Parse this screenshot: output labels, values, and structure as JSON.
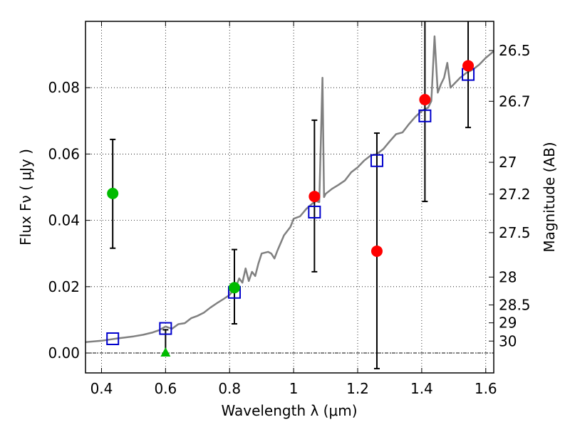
{
  "chart_data": {
    "type": "scatter",
    "xlabel": "Wavelength  λ (μm)",
    "ylabel": "Flux  Fν  ( μJy )",
    "y2label": "Magnitude (AB)",
    "xlim": [
      0.35,
      1.625
    ],
    "ylim": [
      -0.006,
      0.1
    ],
    "grid": true,
    "x_ticks": [
      0.4,
      0.6,
      0.8,
      1.0,
      1.2,
      1.4,
      1.6
    ],
    "x_tick_labels": [
      "0.4",
      "0.6",
      "0.8",
      "1",
      "1.2",
      "1.4",
      "1.6"
    ],
    "y_ticks": [
      0.0,
      0.02,
      0.04,
      0.06,
      0.08
    ],
    "y_tick_labels": [
      "0.00",
      "0.02",
      "0.04",
      "0.06",
      "0.08"
    ],
    "mag_ticks": [
      {
        "label": "26.5",
        "flux": 0.0912
      },
      {
        "label": "26.7",
        "flux": 0.0759
      },
      {
        "label": "27",
        "flux": 0.0575
      },
      {
        "label": "27.2",
        "flux": 0.0479
      },
      {
        "label": "27.5",
        "flux": 0.0363
      },
      {
        "label": "28",
        "flux": 0.0229
      },
      {
        "label": "28.5",
        "flux": 0.0145
      },
      {
        "label": "29",
        "flux": 0.0091
      },
      {
        "label": "30",
        "flux": 0.0036
      }
    ],
    "series": [
      {
        "type": "line",
        "color": "#808080",
        "points": [
          [
            0.35,
            0.0033
          ],
          [
            0.4,
            0.0037
          ],
          [
            0.45,
            0.0044
          ],
          [
            0.5,
            0.005
          ],
          [
            0.53,
            0.0055
          ],
          [
            0.56,
            0.0062
          ],
          [
            0.58,
            0.0069
          ],
          [
            0.6,
            0.008
          ],
          [
            0.62,
            0.0073
          ],
          [
            0.64,
            0.0087
          ],
          [
            0.66,
            0.009
          ],
          [
            0.68,
            0.0105
          ],
          [
            0.7,
            0.0112
          ],
          [
            0.72,
            0.0122
          ],
          [
            0.74,
            0.0137
          ],
          [
            0.76,
            0.015
          ],
          [
            0.78,
            0.0162
          ],
          [
            0.8,
            0.0175
          ],
          [
            0.82,
            0.02
          ],
          [
            0.83,
            0.0225
          ],
          [
            0.84,
            0.0212
          ],
          [
            0.85,
            0.0255
          ],
          [
            0.86,
            0.0217
          ],
          [
            0.87,
            0.0245
          ],
          [
            0.88,
            0.0232
          ],
          [
            0.89,
            0.027
          ],
          [
            0.9,
            0.03
          ],
          [
            0.92,
            0.0305
          ],
          [
            0.93,
            0.03
          ],
          [
            0.94,
            0.0285
          ],
          [
            0.95,
            0.031
          ],
          [
            0.97,
            0.0355
          ],
          [
            0.99,
            0.038
          ],
          [
            1.0,
            0.0405
          ],
          [
            1.02,
            0.0412
          ],
          [
            1.04,
            0.0435
          ],
          [
            1.06,
            0.0452
          ],
          [
            1.07,
            0.0458
          ],
          [
            1.08,
            0.0455
          ],
          [
            1.09,
            0.083
          ],
          [
            1.095,
            0.047
          ],
          [
            1.1,
            0.048
          ],
          [
            1.12,
            0.0495
          ],
          [
            1.14,
            0.0507
          ],
          [
            1.16,
            0.052
          ],
          [
            1.18,
            0.0545
          ],
          [
            1.2,
            0.056
          ],
          [
            1.22,
            0.058
          ],
          [
            1.24,
            0.0595
          ],
          [
            1.26,
            0.06
          ],
          [
            1.28,
            0.0615
          ],
          [
            1.3,
            0.0638
          ],
          [
            1.32,
            0.066
          ],
          [
            1.34,
            0.0665
          ],
          [
            1.36,
            0.069
          ],
          [
            1.38,
            0.0712
          ],
          [
            1.4,
            0.073
          ],
          [
            1.42,
            0.074
          ],
          [
            1.43,
            0.076
          ],
          [
            1.44,
            0.0955
          ],
          [
            1.45,
            0.0785
          ],
          [
            1.46,
            0.081
          ],
          [
            1.47,
            0.083
          ],
          [
            1.48,
            0.0875
          ],
          [
            1.49,
            0.08
          ],
          [
            1.5,
            0.081
          ],
          [
            1.52,
            0.083
          ],
          [
            1.54,
            0.0845
          ],
          [
            1.56,
            0.0855
          ],
          [
            1.58,
            0.087
          ],
          [
            1.6,
            0.089
          ],
          [
            1.625,
            0.091
          ]
        ]
      },
      {
        "type": "squares",
        "color": "#0000cc",
        "points": [
          [
            0.435,
            0.0043
          ],
          [
            0.6,
            0.0074
          ],
          [
            0.815,
            0.0183
          ],
          [
            1.065,
            0.0425
          ],
          [
            1.26,
            0.058
          ],
          [
            1.41,
            0.0715
          ],
          [
            1.545,
            0.084
          ]
        ]
      },
      {
        "type": "errorbar",
        "color": "#ff0000",
        "points": [
          {
            "x": 1.065,
            "y": 0.0472,
            "lo": 0.0245,
            "hi": 0.0702
          },
          {
            "x": 1.26,
            "y": 0.0307,
            "lo": -0.0047,
            "hi": 0.0663
          },
          {
            "x": 1.41,
            "y": 0.0764,
            "lo": 0.0457,
            "hi": 0.1
          },
          {
            "x": 1.545,
            "y": 0.0866,
            "lo": 0.068,
            "hi": 0.1
          }
        ]
      },
      {
        "type": "errorbar",
        "color": "#00bb00",
        "points": [
          {
            "x": 0.435,
            "y": 0.0481,
            "lo": 0.0316,
            "hi": 0.0644
          },
          {
            "x": 0.815,
            "y": 0.0197,
            "lo": 0.0088,
            "hi": 0.0312
          }
        ]
      },
      {
        "type": "triangle",
        "color": "#00bb00",
        "points": [
          [
            0.6,
            0.0
          ],
          [
            0.6,
            0.007
          ]
        ]
      }
    ]
  }
}
